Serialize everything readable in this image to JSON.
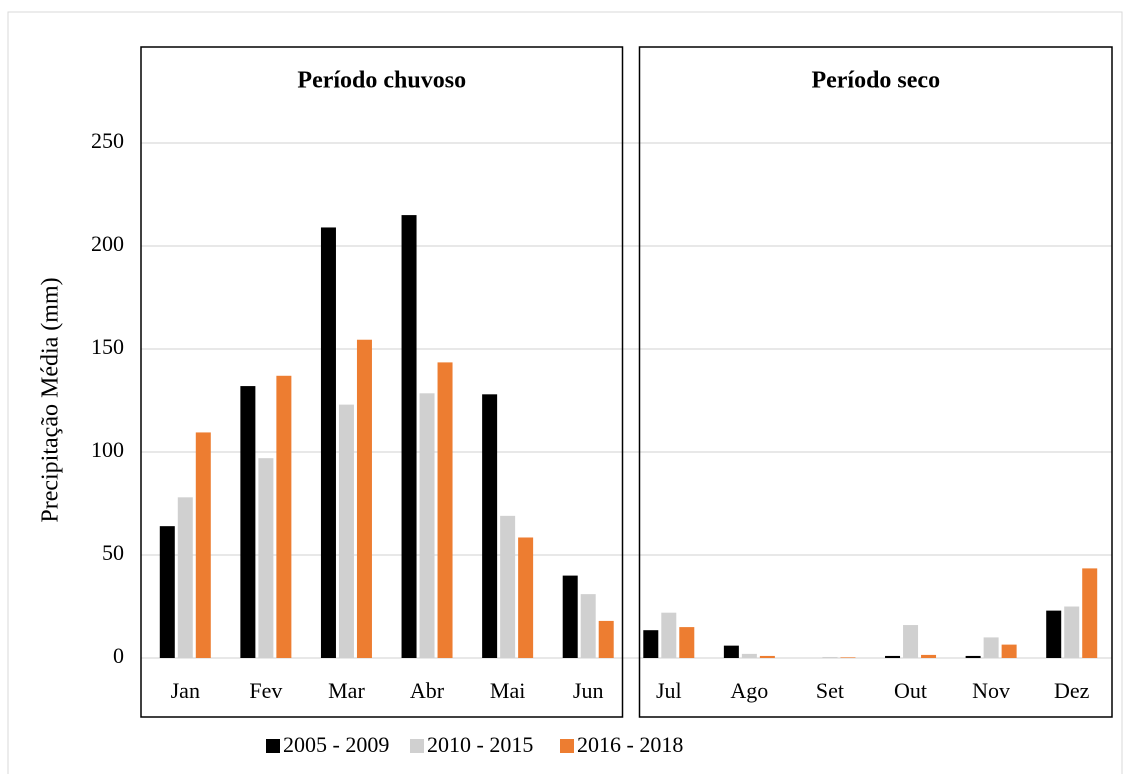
{
  "chart_data": {
    "type": "bar",
    "y_label": "Precipitação Média (mm)",
    "panel_titles": [
      "Período chuvoso",
      "Período seco"
    ],
    "categories": [
      "Jan",
      "Fev",
      "Mar",
      "Abr",
      "Mai",
      "Jun",
      "Jul",
      "Ago",
      "Set",
      "Out",
      "Nov",
      "Dez"
    ],
    "series": [
      {
        "name": "2005 - 2009",
        "color": "#000000",
        "values": [
          64,
          132,
          209,
          215,
          128,
          40,
          13.5,
          6,
          0,
          1,
          1,
          23
        ]
      },
      {
        "name": "2010 - 2015",
        "color": "#d0d0d0",
        "values": [
          78,
          97,
          123,
          128.5,
          69,
          31,
          22,
          2,
          0.5,
          16,
          10,
          25
        ]
      },
      {
        "name": "2016 - 2018",
        "color": "#ed7d31",
        "values": [
          109.5,
          137,
          154.5,
          143.5,
          58.5,
          18,
          15,
          1,
          0.3,
          1.5,
          6.5,
          43.5
        ]
      }
    ],
    "ylim": [
      0,
      300
    ],
    "yticks": [
      0,
      50,
      100,
      150,
      200,
      250
    ],
    "grid": true,
    "legend": "bottom"
  }
}
